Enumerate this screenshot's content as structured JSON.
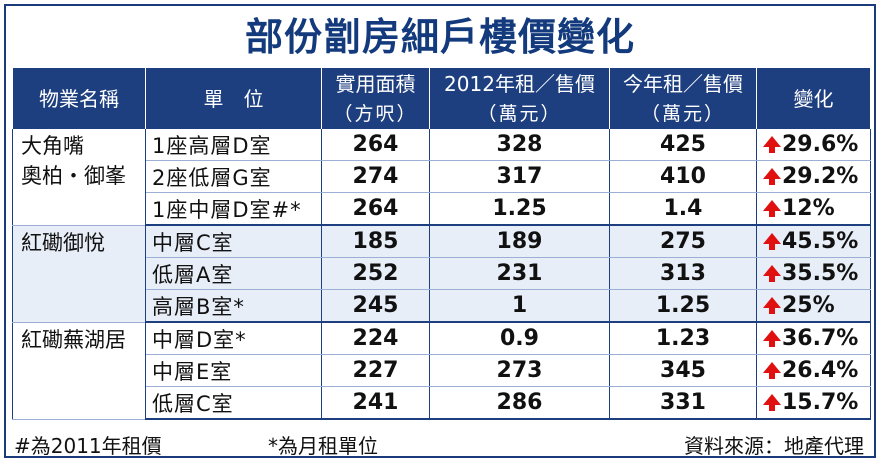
{
  "title": "部份劏房細戶樓價變化",
  "headers": [
    {
      "main": "物業名稱",
      "sub": ""
    },
    {
      "main": "單　位",
      "sub": ""
    },
    {
      "main": "實用面積",
      "sub": "（方呎）"
    },
    {
      "main": "2012年租／售價",
      "sub": "（萬元）"
    },
    {
      "main": "今年租／售價",
      "sub": "（萬元）"
    },
    {
      "main": "變化",
      "sub": ""
    }
  ],
  "groups": [
    {
      "property_lines": [
        "大角嘴",
        "奧柏・御峯"
      ],
      "rows": [
        {
          "unit": "1座高層D室",
          "area": "264",
          "price_2012": "328",
          "price_now": "425",
          "change": "29.6%"
        },
        {
          "unit": "2座低層G室",
          "area": "274",
          "price_2012": "317",
          "price_now": "410",
          "change": "29.2%"
        },
        {
          "unit": "1座中層D室#*",
          "area": "264",
          "price_2012": "1.25",
          "price_now": "1.4",
          "change": "12%"
        }
      ]
    },
    {
      "property_lines": [
        "紅磡御悅"
      ],
      "rows": [
        {
          "unit": "中層C室",
          "area": "185",
          "price_2012": "189",
          "price_now": "275",
          "change": "45.5%"
        },
        {
          "unit": "低層A室",
          "area": "252",
          "price_2012": "231",
          "price_now": "313",
          "change": "35.5%"
        },
        {
          "unit": "高層B室*",
          "area": "245",
          "price_2012": "1",
          "price_now": "1.25",
          "change": "25%"
        }
      ]
    },
    {
      "property_lines": [
        "紅磡蕪湖居"
      ],
      "rows": [
        {
          "unit": "中層D室*",
          "area": "224",
          "price_2012": "0.9",
          "price_now": "1.23",
          "change": "36.7%"
        },
        {
          "unit": "中層E室",
          "area": "227",
          "price_2012": "273",
          "price_now": "345",
          "change": "26.4%"
        },
        {
          "unit": "低層C室",
          "area": "241",
          "price_2012": "286",
          "price_now": "331",
          "change": "15.7%"
        }
      ]
    }
  ],
  "footnotes": {
    "hash_note": "#為2011年租價",
    "star_note": "*為月租單位",
    "source": "資料來源：地產代理"
  },
  "colors": {
    "header_bg": "#1d3f7f",
    "title": "#123a7c",
    "arrow": "#e01010",
    "alt_row": "#e8eef8"
  },
  "icons": {
    "change_arrow": "up-arrow-icon"
  }
}
